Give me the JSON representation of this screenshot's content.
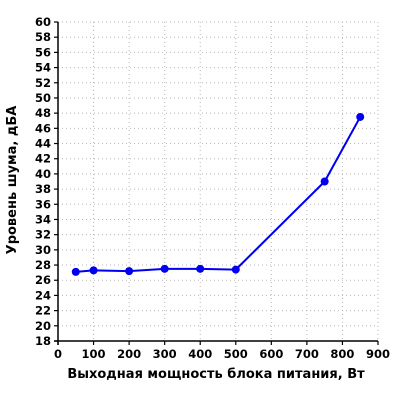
{
  "chart_data": {
    "type": "line",
    "title": "",
    "xlabel": "Выходная мощность блока питания, Вт",
    "ylabel": "Уровень шума, дБА",
    "xlim": [
      0,
      900
    ],
    "ylim": [
      18,
      60
    ],
    "x_ticks": [
      0,
      100,
      200,
      300,
      400,
      500,
      600,
      700,
      800,
      900
    ],
    "y_ticks": [
      18,
      20,
      22,
      24,
      26,
      28,
      30,
      32,
      34,
      36,
      38,
      40,
      42,
      44,
      46,
      48,
      50,
      52,
      54,
      56,
      58,
      60
    ],
    "grid": true,
    "legend": "none",
    "series": [
      {
        "color": "#0000ee",
        "x": [
          50,
          100,
          200,
          300,
          400,
          500,
          750,
          850
        ],
        "y": [
          27.1,
          27.3,
          27.2,
          27.5,
          27.5,
          27.4,
          39.0,
          47.5
        ]
      }
    ]
  }
}
